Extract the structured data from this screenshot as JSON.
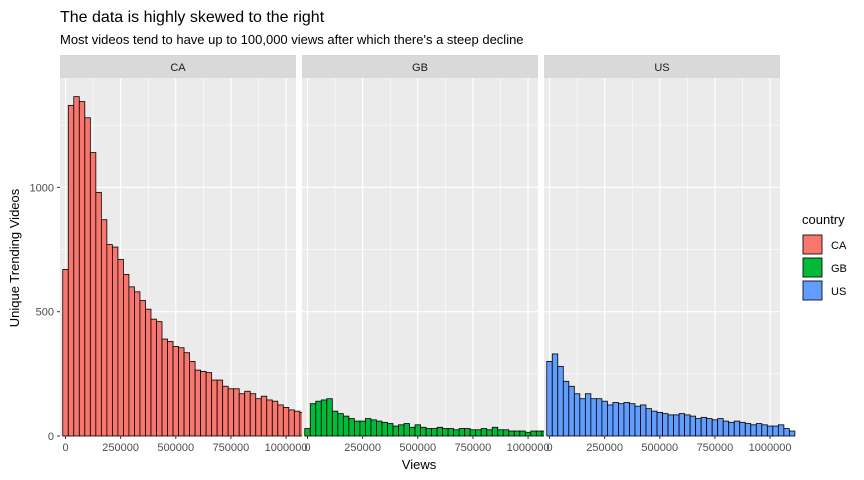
{
  "chart_data": {
    "type": "bar",
    "title": "The data is highly skewed to the right",
    "subtitle": "Most videos tend to have up to 100,000 views after which there's a steep decline",
    "xlabel": "Views",
    "ylabel": "Unique Trending Videos",
    "xlim": [
      -25000,
      1045000
    ],
    "ylim": [
      0,
      1440
    ],
    "x_ticks": [
      0,
      250000,
      500000,
      750000,
      1000000
    ],
    "x_tick_labels": [
      "0",
      "250000",
      "500000",
      "750000",
      "1000000"
    ],
    "y_ticks": [
      0,
      500,
      1000
    ],
    "y_tick_labels": [
      "0",
      "500",
      "1000"
    ],
    "bin_width": 25000,
    "bin_start": -12500,
    "grid": true,
    "legend": {
      "title": "country",
      "position": "right"
    },
    "series": [
      {
        "name": "CA",
        "color": "#F8766D",
        "values": [
          670,
          1330,
          1365,
          1345,
          1280,
          1140,
          980,
          870,
          770,
          760,
          710,
          650,
          600,
          580,
          545,
          510,
          470,
          460,
          390,
          380,
          360,
          355,
          335,
          300,
          265,
          260,
          255,
          225,
          225,
          200,
          190,
          190,
          170,
          180,
          170,
          150,
          160,
          145,
          140,
          125,
          115,
          105,
          100,
          95,
          60
        ]
      },
      {
        "name": "GB",
        "color": "#00BA38",
        "values": [
          30,
          130,
          140,
          145,
          150,
          100,
          90,
          80,
          70,
          60,
          60,
          70,
          65,
          60,
          55,
          50,
          40,
          45,
          50,
          35,
          45,
          35,
          30,
          30,
          35,
          30,
          30,
          25,
          30,
          30,
          25,
          25,
          30,
          25,
          35,
          25,
          25,
          20,
          20,
          20,
          15,
          20,
          20,
          20,
          15
        ]
      },
      {
        "name": "US",
        "color": "#619CFF",
        "values": [
          300,
          330,
          280,
          220,
          200,
          170,
          150,
          170,
          150,
          150,
          140,
          125,
          135,
          130,
          135,
          130,
          120,
          125,
          110,
          100,
          95,
          90,
          85,
          85,
          90,
          85,
          80,
          70,
          75,
          70,
          65,
          70,
          60,
          55,
          60,
          55,
          50,
          45,
          50,
          45,
          40,
          40,
          45,
          30,
          20
        ]
      }
    ]
  }
}
